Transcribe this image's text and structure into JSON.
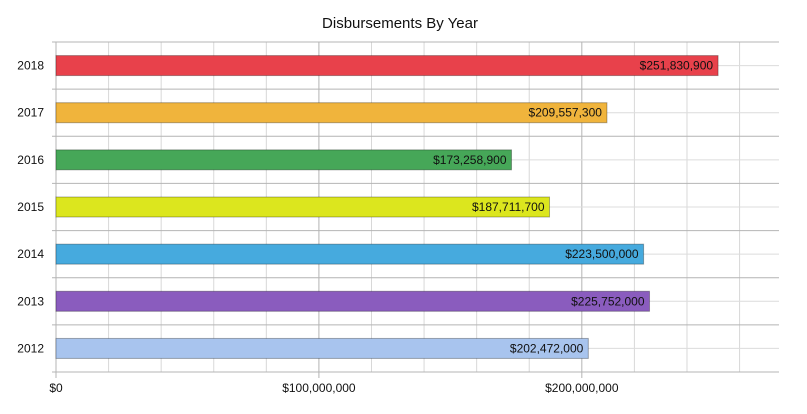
{
  "chart_data": {
    "type": "bar",
    "orientation": "horizontal",
    "title": "Disbursements By Year",
    "xlabel": "",
    "ylabel": "",
    "categories": [
      "2018",
      "2017",
      "2016",
      "2015",
      "2014",
      "2013",
      "2012"
    ],
    "values": [
      251830900,
      209557300,
      173258900,
      187711700,
      223500000,
      225752000,
      202472000
    ],
    "data_labels": [
      "$251,830,900",
      "$209,557,300",
      "$173,258,900",
      "$187,711,700",
      "$223,500,000",
      "$225,752,000",
      "$202,472,000"
    ],
    "colors": [
      "#e8414b",
      "#f0b43c",
      "#46a758",
      "#dce61e",
      "#46aade",
      "#8a5cbe",
      "#a8c4ee"
    ],
    "xlim": [
      0,
      275000000
    ],
    "x_ticks": [
      0,
      100000000,
      200000000
    ],
    "x_tick_labels": [
      "$0",
      "$100,000,000",
      "$200,000,000"
    ],
    "grid": true,
    "legend": "none"
  }
}
